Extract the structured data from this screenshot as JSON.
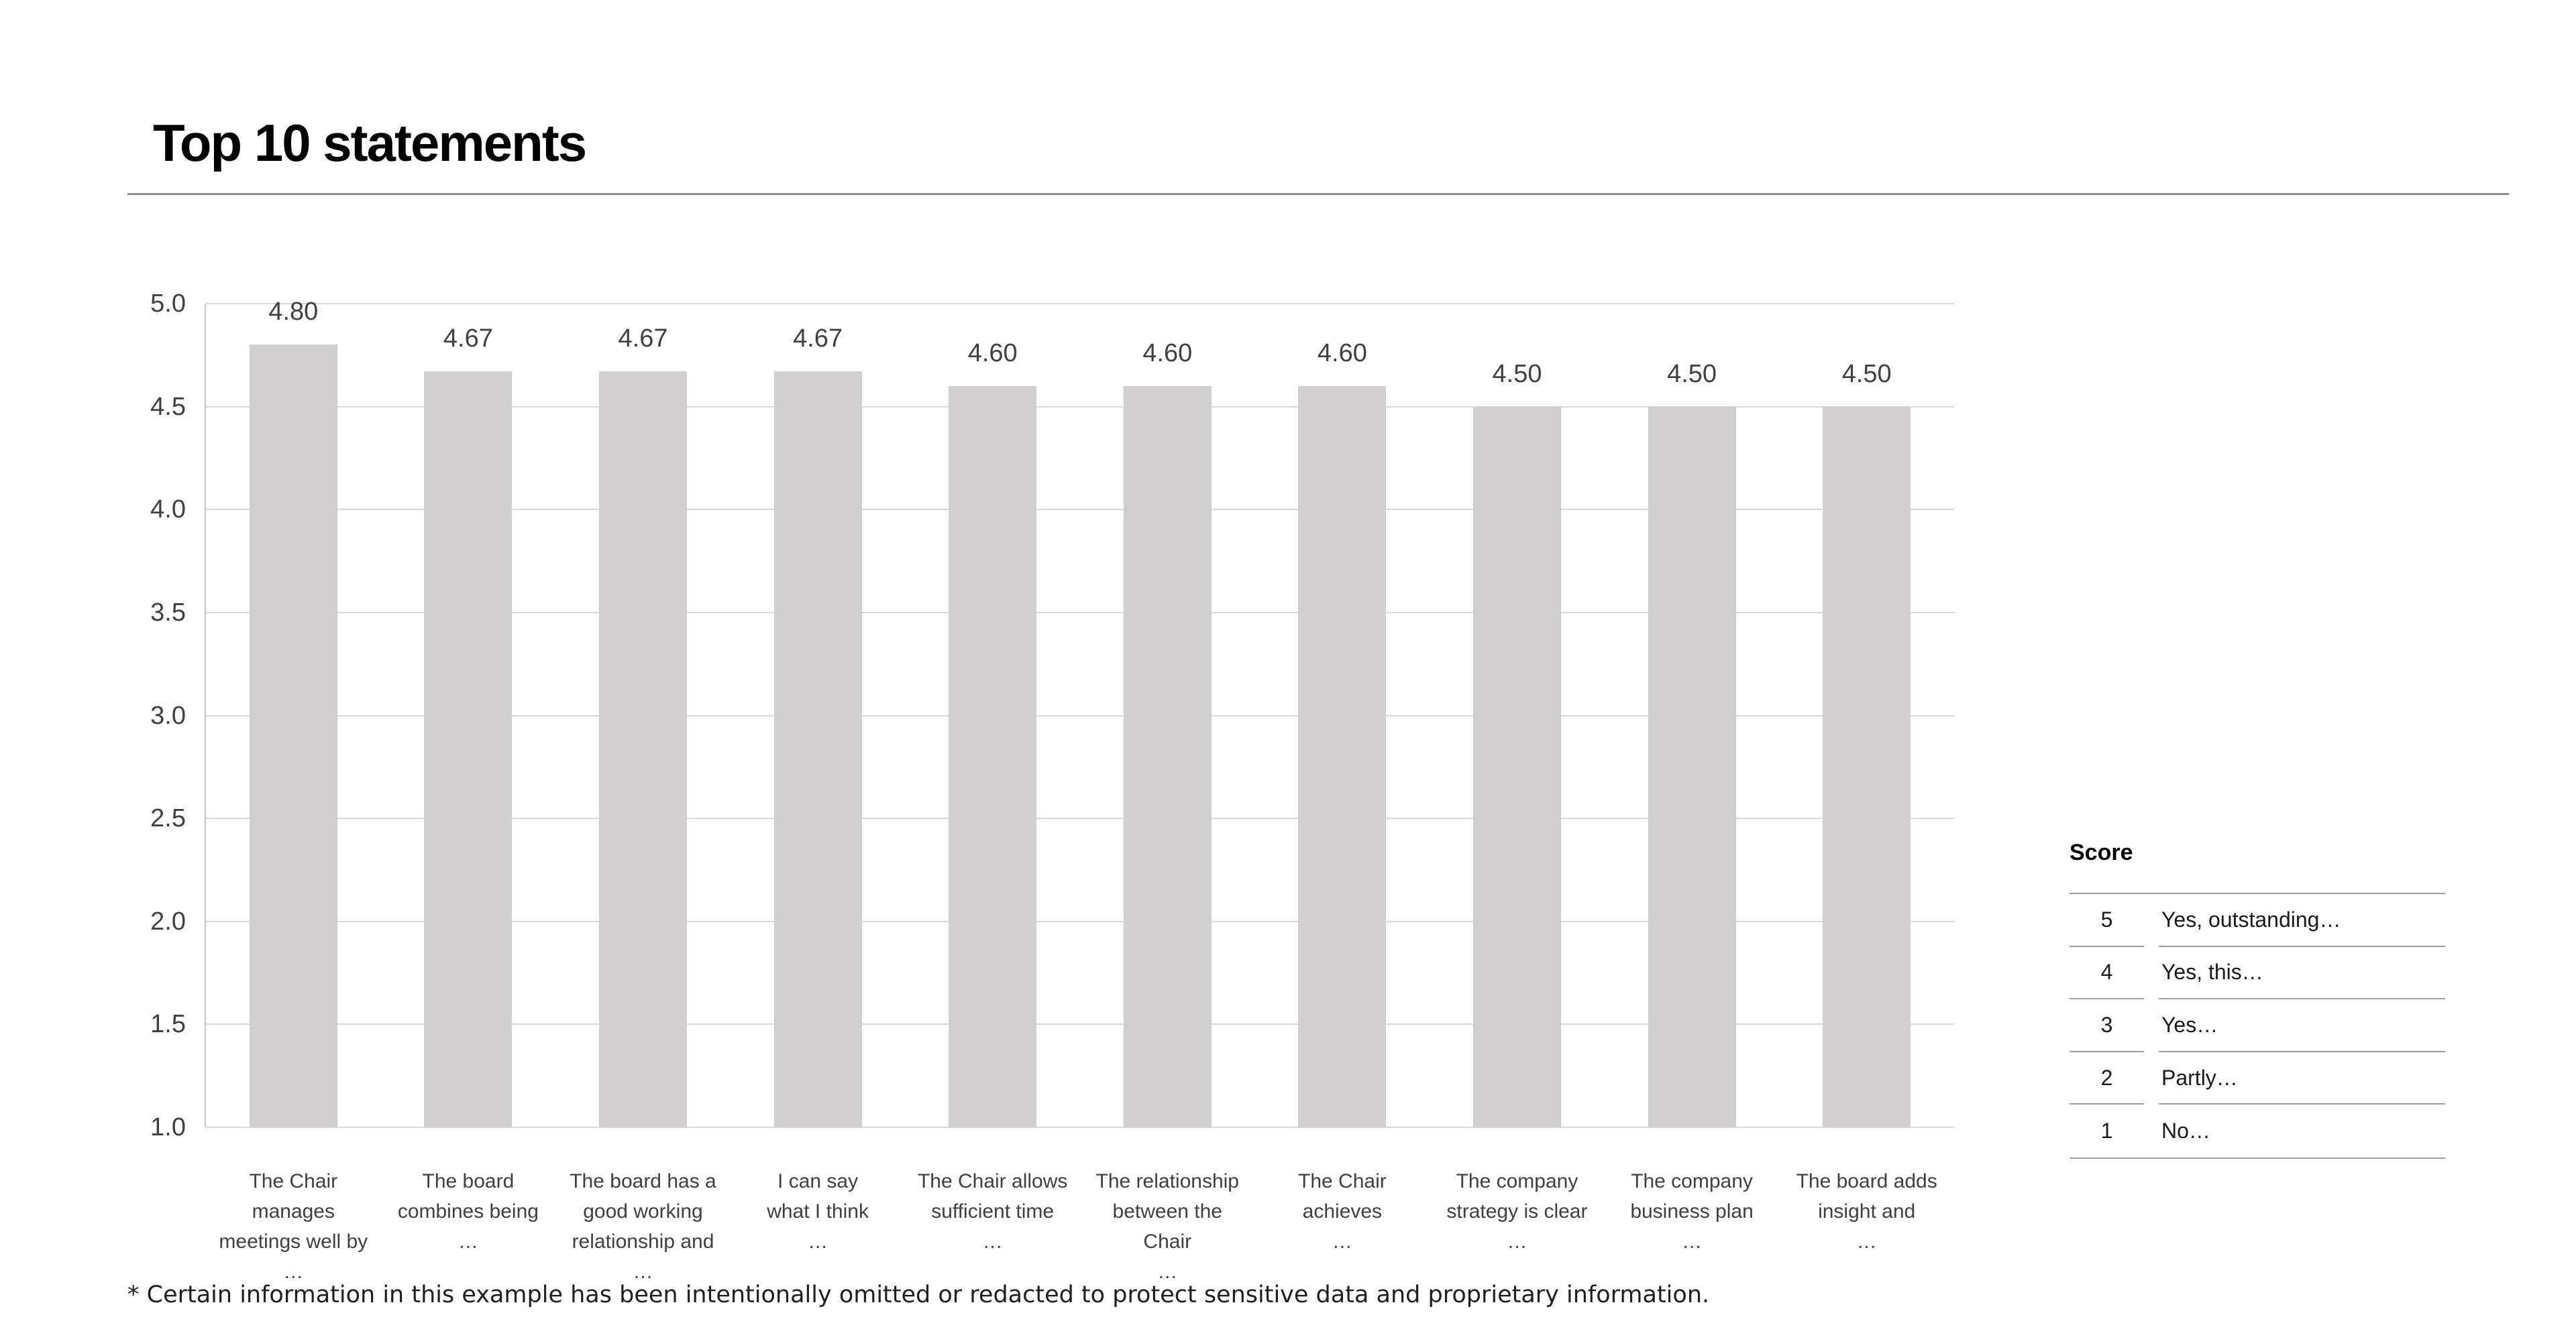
{
  "page": {
    "title": "Top 10 statements",
    "footnote": "* Certain information in this example has been intentionally omitted or redacted to protect sensitive data and proprietary information."
  },
  "chart_data": {
    "type": "bar",
    "title": "Top 10 statements",
    "categories": [
      [
        "The Chair manages",
        "meetings well by",
        "…"
      ],
      [
        "The board",
        "combines being",
        "…"
      ],
      [
        "The board has a",
        "good working",
        "relationship and",
        "…"
      ],
      [
        "I can say",
        "what I think",
        "…"
      ],
      [
        "The Chair allows",
        "sufficient time",
        "…"
      ],
      [
        "The relationship",
        "between the Chair",
        "…"
      ],
      [
        "The Chair",
        "achieves",
        "…"
      ],
      [
        "The company",
        "strategy is clear",
        "…"
      ],
      [
        "The company",
        "business plan",
        "…"
      ],
      [
        "The board adds",
        "insight and",
        "…"
      ]
    ],
    "values": [
      4.8,
      4.67,
      4.67,
      4.67,
      4.6,
      4.6,
      4.6,
      4.5,
      4.5,
      4.5
    ],
    "value_labels": [
      "4.80",
      "4.67",
      "4.67",
      "4.67",
      "4.60",
      "4.60",
      "4.60",
      "4.50",
      "4.50",
      "4.50"
    ],
    "xlabel": "",
    "ylabel": "",
    "ylim": [
      1.0,
      5.0
    ],
    "yticks": [
      5.0,
      4.5,
      4.0,
      3.5,
      3.0,
      2.5,
      2.0,
      1.5,
      1.0
    ],
    "grid": "horizontal",
    "legend_position": "none",
    "colors": {
      "bar": "#d0cece",
      "gridline": "#d9d9d9",
      "axis_line": "#c8c6c6",
      "label_text": "#404040",
      "table_line": "#9e9e9e"
    }
  },
  "score_legend": {
    "header": "Score",
    "rows": [
      {
        "score": "5",
        "label": "Yes, outstanding…"
      },
      {
        "score": "4",
        "label": "Yes, this…"
      },
      {
        "score": "3",
        "label": "Yes…"
      },
      {
        "score": "2",
        "label": "Partly…"
      },
      {
        "score": "1",
        "label": "No…"
      }
    ]
  }
}
